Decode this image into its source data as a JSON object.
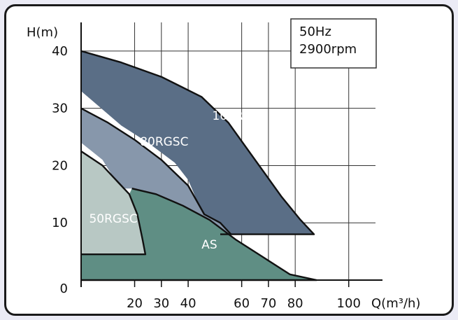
{
  "chart_data": {
    "type": "area",
    "title": "",
    "annotation": [
      "50Hz",
      "2900rpm"
    ],
    "xlabel": "Q(m³/h)",
    "ylabel": "H(m)",
    "xlim": [
      0,
      110
    ],
    "ylim": [
      0,
      45
    ],
    "x_ticks": [
      20,
      30,
      40,
      60,
      70,
      80,
      100
    ],
    "y_ticks": [
      0,
      10,
      20,
      30,
      40
    ],
    "grid": true,
    "colors": {
      "100RGSC": "#5a6e86",
      "80RGSC": "#8797ab",
      "50RGSC": "#b8c8c4",
      "AS": "#5f8e84",
      "grid": "#333333",
      "curve": "#111111"
    },
    "series": [
      {
        "name": "100RGSC",
        "label_at": [
          49,
          28
        ],
        "outline": [
          [
            0,
            40
          ],
          [
            15,
            38
          ],
          [
            30,
            35.5
          ],
          [
            45,
            32
          ],
          [
            55,
            27.5
          ],
          [
            65,
            21
          ],
          [
            75,
            14.5
          ],
          [
            82,
            10.5
          ],
          [
            87,
            8
          ],
          [
            52,
            8
          ],
          [
            45,
            12
          ],
          [
            40,
            17.5
          ],
          [
            35,
            20.5
          ],
          [
            25,
            24
          ],
          [
            15,
            27
          ],
          [
            0,
            33
          ]
        ]
      },
      {
        "name": "80RGSC",
        "label_at": [
          22,
          23.5
        ],
        "outline": [
          [
            0,
            30
          ],
          [
            10,
            27.5
          ],
          [
            20,
            24.5
          ],
          [
            30,
            21
          ],
          [
            40,
            16.5
          ],
          [
            46,
            11.5
          ],
          [
            52,
            10
          ],
          [
            56,
            8
          ],
          [
            47,
            8.5
          ],
          [
            38,
            12.5
          ],
          [
            28,
            14.5
          ],
          [
            20,
            16
          ],
          [
            15,
            16
          ],
          [
            12,
            18
          ],
          [
            8,
            21
          ],
          [
            0,
            24
          ]
        ]
      },
      {
        "name": "50RGSC",
        "label_at": [
          3,
          10
        ],
        "outline": [
          [
            0,
            22.5
          ],
          [
            8,
            20
          ],
          [
            14,
            17
          ],
          [
            18,
            15
          ],
          [
            21,
            11.5
          ],
          [
            23,
            7
          ],
          [
            24,
            4.5
          ],
          [
            0,
            4.5
          ]
        ]
      },
      {
        "name": "AS",
        "label_at": [
          45,
          5.5
        ],
        "outline": [
          [
            19,
            16
          ],
          [
            28,
            15
          ],
          [
            38,
            13
          ],
          [
            48,
            10.5
          ],
          [
            58,
            7
          ],
          [
            68,
            4
          ],
          [
            78,
            1
          ],
          [
            88,
            0
          ],
          [
            0,
            0
          ],
          [
            0,
            4.5
          ],
          [
            24,
            4.5
          ],
          [
            23,
            7
          ],
          [
            21,
            11.5
          ],
          [
            18,
            15
          ]
        ]
      }
    ],
    "curves": [
      {
        "name": "100RGSC",
        "points": [
          [
            0,
            40
          ],
          [
            15,
            38
          ],
          [
            30,
            35.5
          ],
          [
            45,
            32
          ],
          [
            55,
            27.5
          ],
          [
            65,
            21
          ],
          [
            75,
            14.5
          ],
          [
            82,
            10.5
          ],
          [
            87,
            8
          ],
          [
            52,
            8
          ]
        ]
      },
      {
        "name": "80RGSC",
        "points": [
          [
            0,
            30
          ],
          [
            10,
            27.5
          ],
          [
            20,
            24.5
          ],
          [
            30,
            21
          ],
          [
            40,
            16.5
          ],
          [
            46,
            11.5
          ],
          [
            52,
            10
          ],
          [
            56,
            8
          ]
        ]
      },
      {
        "name": "50RGSC",
        "points": [
          [
            0,
            22.5
          ],
          [
            8,
            20
          ],
          [
            14,
            17
          ],
          [
            18,
            15
          ],
          [
            21,
            11.5
          ],
          [
            23,
            7
          ],
          [
            24,
            4.5
          ],
          [
            0,
            4.5
          ]
        ]
      },
      {
        "name": "AS",
        "points": [
          [
            19,
            16
          ],
          [
            28,
            15
          ],
          [
            38,
            13
          ],
          [
            48,
            10.5
          ],
          [
            58,
            7
          ],
          [
            68,
            4
          ],
          [
            78,
            1
          ],
          [
            88,
            0
          ],
          [
            0,
            0
          ]
        ]
      }
    ]
  }
}
